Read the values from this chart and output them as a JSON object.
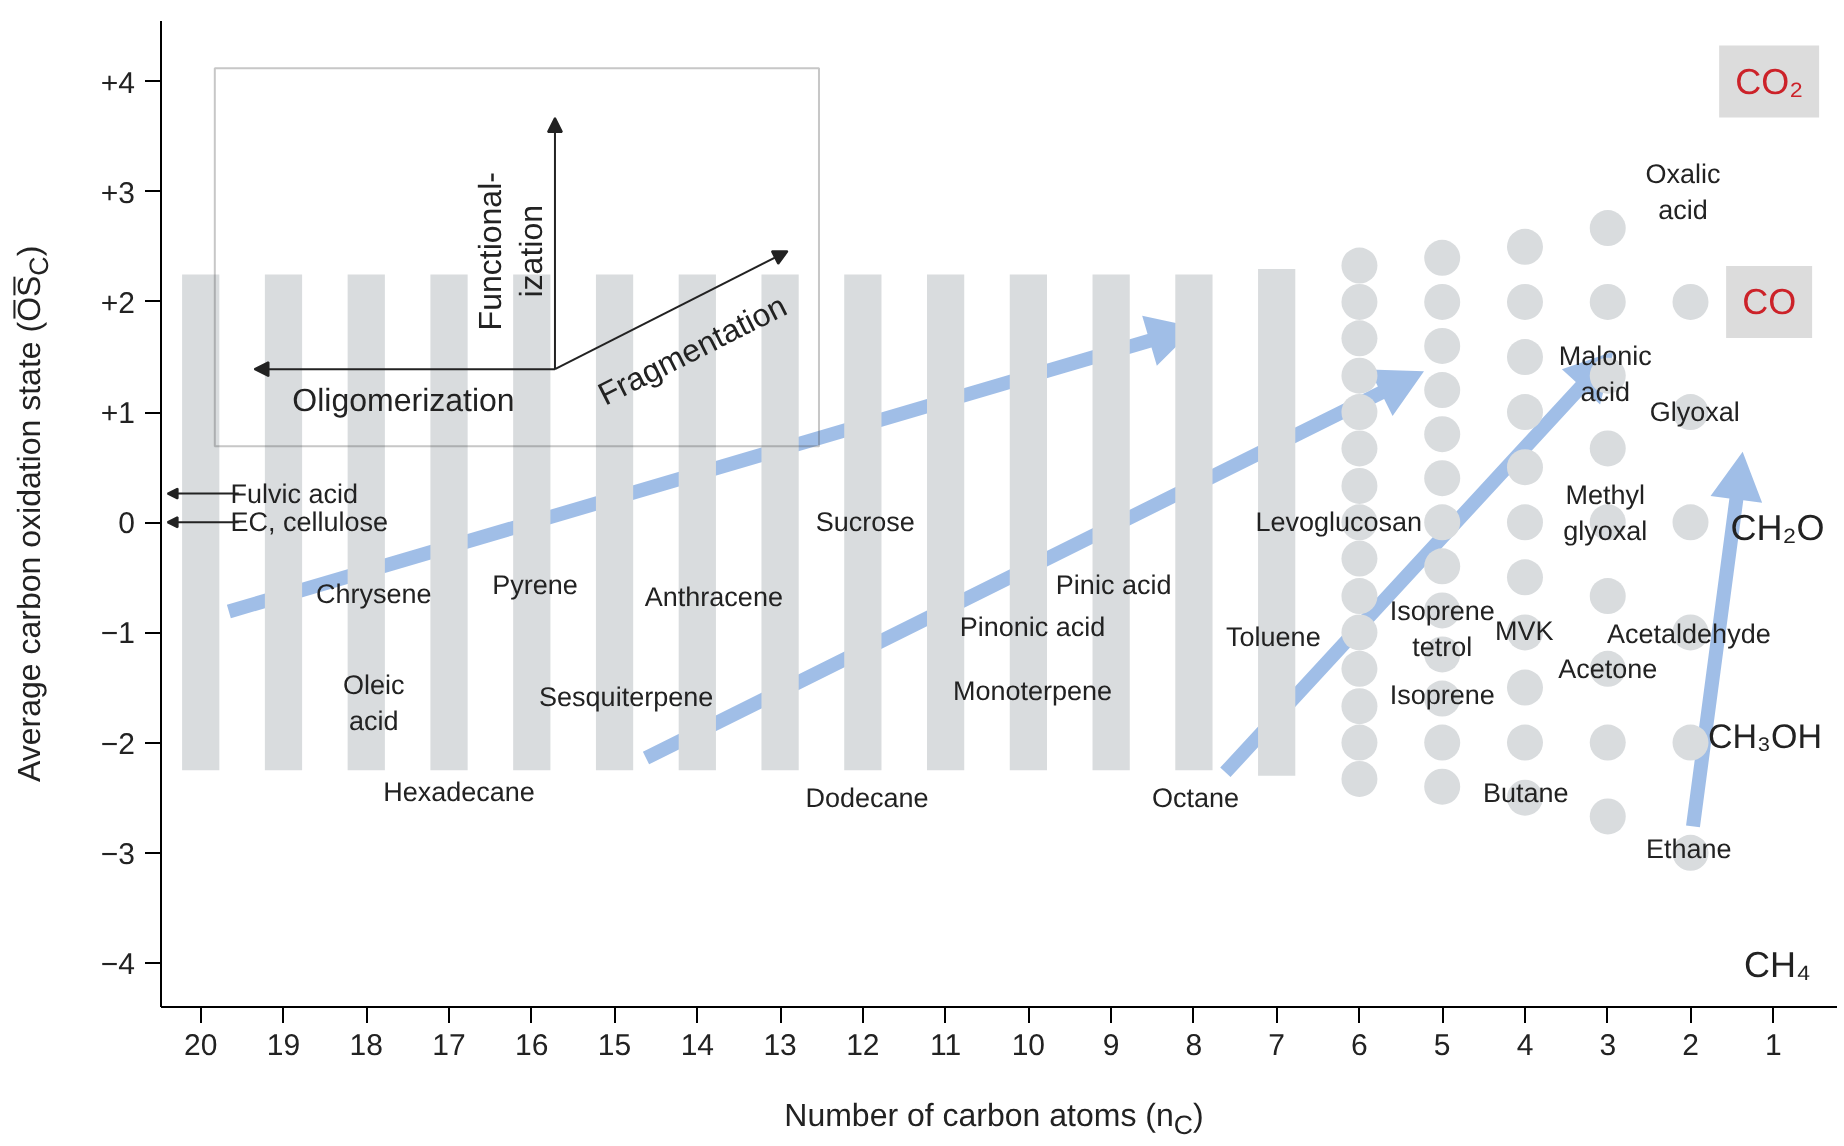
{
  "chart_data": {
    "type": "scatter",
    "xlabel": "Number of carbon atoms (n$_{C}$)",
    "ylabel": "Average carbon oxidation state (O̅S̅$_{C}$)",
    "xlim": [
      20.48,
      0.23
    ],
    "ylim": [
      -4.4,
      4.55
    ],
    "xticks": [
      20,
      19,
      18,
      17,
      16,
      15,
      14,
      13,
      12,
      11,
      10,
      9,
      8,
      7,
      6,
      5,
      4,
      3,
      2,
      1
    ],
    "yticks": [
      {
        "value": -4,
        "label": "−4"
      },
      {
        "value": -3,
        "label": "−3"
      },
      {
        "value": -2,
        "label": "−2"
      },
      {
        "value": -1,
        "label": "−1"
      },
      0,
      {
        "value": 1,
        "label": "+1"
      },
      {
        "value": 2,
        "label": "+2"
      },
      {
        "value": 3,
        "label": "+3"
      },
      {
        "value": 4,
        "label": "+4"
      }
    ],
    "marker": "circle",
    "series": [
      {
        "type": "bar",
        "color": "#d9dcde",
        "x": [
          20,
          19,
          18,
          17,
          16,
          15,
          14,
          13,
          12,
          11,
          10,
          9,
          8,
          7
        ],
        "base": [
          -2.25,
          -2.25,
          -2.25,
          -2.25,
          -2.25,
          -2.25,
          -2.25,
          -2.25,
          -2.25,
          -2.25,
          -2.25,
          -2.25,
          -2.25,
          -2.3
        ],
        "values": [
          4.5,
          4.5,
          4.5,
          4.5,
          4.5,
          4.5,
          4.5,
          4.5,
          4.5,
          4.5,
          4.5,
          4.5,
          4.5,
          4.6
        ]
      },
      {
        "color": "#d9dcde",
        "x": [
          6,
          6,
          6,
          6,
          6,
          6,
          6,
          6,
          6,
          6,
          6,
          6,
          6,
          6,
          6,
          5,
          5,
          5,
          5,
          5,
          5,
          5,
          5,
          5,
          5,
          5,
          5,
          5,
          4,
          4,
          4,
          4,
          4,
          4,
          4,
          4,
          4,
          4,
          4,
          3,
          3,
          3,
          3,
          3,
          3,
          3,
          3,
          3,
          2,
          2,
          2,
          2,
          2,
          2
        ],
        "values": [
          2.33,
          2.0,
          1.67,
          1.33,
          1.0,
          0.67,
          0.33,
          0,
          -0.33,
          -0.67,
          -1.0,
          -1.33,
          -1.67,
          -2.0,
          -2.33,
          2.4,
          2.0,
          1.6,
          1.2,
          0.8,
          0.4,
          0,
          -0.4,
          -0.8,
          -1.2,
          -1.6,
          -2.0,
          -2.4,
          2.5,
          2.0,
          1.5,
          1.0,
          0.5,
          0,
          -0.5,
          -1.0,
          -1.5,
          -2.0,
          -2.5,
          2.67,
          2.0,
          1.33,
          0.67,
          0,
          -0.67,
          -1.33,
          -2.0,
          -2.67,
          2,
          1,
          0,
          -1,
          -2,
          -3
        ]
      }
    ],
    "annotations": [
      "Fulvic acid",
      "EC, cellulose",
      "Chrysene",
      "Pyrene",
      "Anthracene",
      "Sucrose",
      "Oleic\nacid",
      "Sesquiterpene",
      "Hexadecane",
      "Dodecane",
      "Pinic acid",
      "Pinonic acid",
      "Monoterpene",
      "Octane",
      "Toluene",
      "Levoglucosan",
      "Isoprene\ntetrol",
      "Isoprene",
      "MVK",
      "Butane",
      "Malonic\nacid",
      "Methyl\nglyoxal",
      "Acetone",
      "Acetaldehyde",
      "Glyoxal",
      "Oxalic\nacid",
      "Ethane",
      "CO₂",
      "CO",
      "CH₂O",
      "CH₃OH",
      "CH₄",
      "Oligomerization",
      "Functional-\nization",
      "Fragmentation"
    ]
  }
}
